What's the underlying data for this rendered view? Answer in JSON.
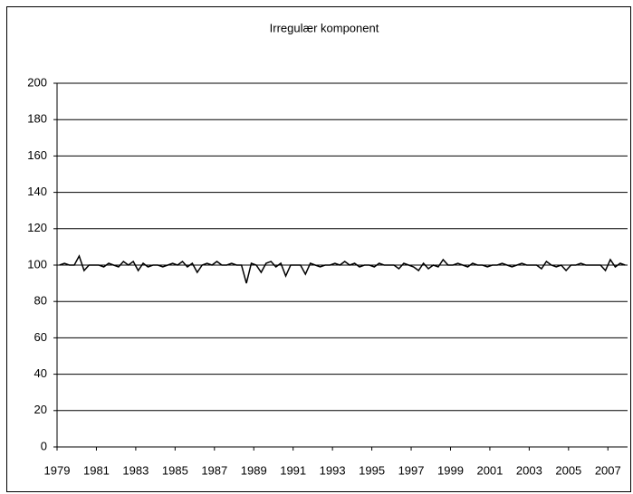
{
  "chart_data": {
    "type": "line",
    "title": "Irregulær komponent",
    "categories": [
      "1979",
      null,
      null,
      null,
      null,
      null,
      null,
      null,
      "1981",
      null,
      null,
      null,
      null,
      null,
      null,
      null,
      "1983",
      null,
      null,
      null,
      null,
      null,
      null,
      null,
      "1985",
      null,
      null,
      null,
      null,
      null,
      null,
      null,
      "1987",
      null,
      null,
      null,
      null,
      null,
      null,
      null,
      "1989",
      null,
      null,
      null,
      null,
      null,
      null,
      null,
      "1991",
      null,
      null,
      null,
      null,
      null,
      null,
      null,
      "1993",
      null,
      null,
      null,
      null,
      null,
      null,
      null,
      "1995",
      null,
      null,
      null,
      null,
      null,
      null,
      null,
      "1997",
      null,
      null,
      null,
      null,
      null,
      null,
      null,
      "1999",
      null,
      null,
      null,
      null,
      null,
      null,
      null,
      "2001",
      null,
      null,
      null,
      null,
      null,
      null,
      null,
      "2003",
      null,
      null,
      null,
      null,
      null,
      null,
      null,
      "2005",
      null,
      null,
      null,
      null,
      null,
      null,
      null,
      "2007",
      null,
      null,
      null
    ],
    "series": [
      {
        "color": "#000000",
        "values": [
          100,
          101,
          100,
          100,
          105,
          97,
          100,
          100,
          100,
          99,
          101,
          100,
          99,
          102,
          100,
          102,
          97,
          101,
          99,
          100,
          100,
          99,
          100,
          101,
          100,
          102,
          99,
          101,
          96,
          100,
          101,
          100,
          102,
          100,
          100,
          101,
          100,
          100,
          90,
          101,
          100,
          96,
          101,
          102,
          99,
          101,
          94,
          100,
          100,
          100,
          95,
          101,
          100,
          99,
          100,
          100,
          101,
          100,
          102,
          100,
          101,
          99,
          100,
          100,
          99,
          101,
          100,
          100,
          100,
          98,
          101,
          100,
          99,
          97,
          101,
          98,
          100,
          99,
          103,
          100,
          100,
          101,
          100,
          99,
          101,
          100,
          100,
          99,
          100,
          100,
          101,
          100,
          99,
          100,
          101,
          100,
          100,
          100,
          98,
          102,
          100,
          99,
          100,
          97,
          100,
          100,
          101,
          100,
          100,
          100,
          100,
          97,
          103,
          99,
          101,
          100
        ]
      }
    ],
    "ylim": [
      0,
      200
    ],
    "yticks": [
      0,
      20,
      40,
      60,
      80,
      100,
      120,
      140,
      160,
      180,
      200
    ],
    "grid": true
  }
}
